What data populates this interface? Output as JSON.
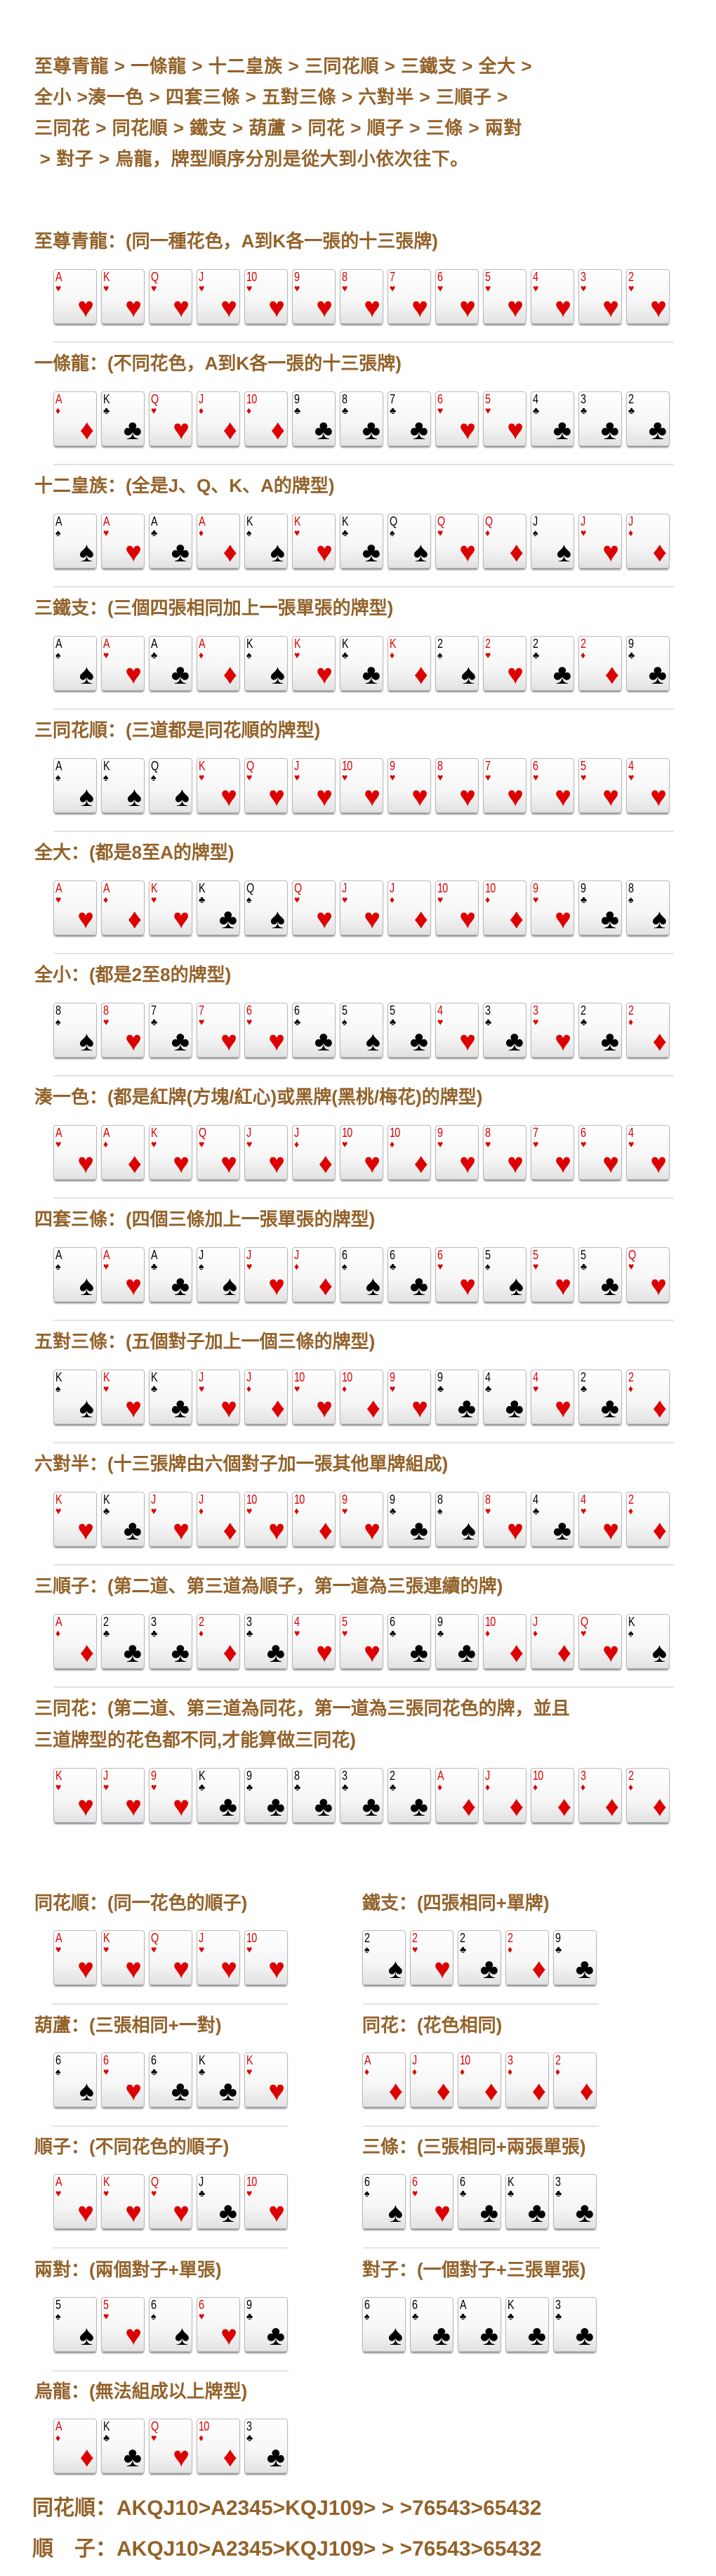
{
  "intro": [
    "至尊青龍 > 一條龍 > 十二皇族 > 三同花順 > 三鐵支 > 全大 >",
    "全小 >湊一色 > 四套三條 > 五對三條 > 六對半 > 三順子 >",
    "三同花 > 同花順 > 鐵支 > 葫蘆 > 同花 > 順子 > 三條 > 兩對",
    " > 對子 > 烏龍，牌型順序分別是從大到小依次往下。"
  ],
  "colors": {
    "title": "#93622a",
    "red_suit": "#dd0000",
    "black_suit": "#000000"
  },
  "suits": {
    "s": "spade",
    "h": "heart",
    "d": "diamond",
    "c": "club"
  },
  "sections": [
    {
      "title": [
        "至尊青龍：(同一種花色，A到K各一張的十三張牌)"
      ],
      "cards": [
        "Ah",
        "Kh",
        "Qh",
        "Jh",
        "10h",
        "9h",
        "8h",
        "7h",
        "6h",
        "5h",
        "4h",
        "3h",
        "2h"
      ]
    },
    {
      "title": [
        "一條龍：(不同花色，A到K各一張的十三張牌)"
      ],
      "cards": [
        "Ad",
        "Kc",
        "Qh",
        "Jd",
        "10d",
        "9c",
        "8c",
        "7c",
        "6h",
        "5h",
        "4c",
        "3c",
        "2c"
      ]
    },
    {
      "title": [
        "十二皇族：(全是J、Q、K、A的牌型)"
      ],
      "cards": [
        "As",
        "Ah",
        "Ac",
        "Ad",
        "Ks",
        "Kh",
        "Kc",
        "Qs",
        "Qh",
        "Qd",
        "Js",
        "Jh",
        "Jd"
      ]
    },
    {
      "title": [
        "三鐵支：(三個四張相同加上一張單張的牌型)"
      ],
      "cards": [
        "As",
        "Ah",
        "Ac",
        "Ad",
        "Ks",
        "Kh",
        "Kc",
        "Kd",
        "2s",
        "2h",
        "2c",
        "2d",
        "9c"
      ]
    },
    {
      "title": [
        "三同花順：(三道都是同花順的牌型)"
      ],
      "cards": [
        "As",
        "Ks",
        "Qs",
        "Kh",
        "Qh",
        "Jh",
        "10h",
        "9h",
        "8h",
        "7h",
        "6h",
        "5h",
        "4h"
      ]
    },
    {
      "title": [
        "全大：(都是8至A的牌型)"
      ],
      "cards": [
        "Ah",
        "Ad",
        "Kh",
        "Kc",
        "Qs",
        "Qh",
        "Jh",
        "Jd",
        "10h",
        "10d",
        "9h",
        "9c",
        "8s"
      ]
    },
    {
      "title": [
        "全小：(都是2至8的牌型)"
      ],
      "cards": [
        "8s",
        "8h",
        "7c",
        "7h",
        "6h",
        "6c",
        "5s",
        "5c",
        "4h",
        "3c",
        "3h",
        "2c",
        "2d"
      ]
    },
    {
      "title": [
        "湊一色：(都是紅牌(方塊/紅心)或黑牌(黑桃/梅花)的牌型)"
      ],
      "cards": [
        "Ah",
        "Ad",
        "Kh",
        "Qh",
        "Jh",
        "Jd",
        "10h",
        "10d",
        "9h",
        "8h",
        "7h",
        "6h",
        "4h"
      ]
    },
    {
      "title": [
        "四套三條：(四個三條加上一張單張的牌型)"
      ],
      "cards": [
        "As",
        "Ah",
        "Ac",
        "Js",
        "Jh",
        "Jd",
        "6s",
        "6c",
        "6h",
        "5s",
        "5h",
        "5c",
        "Qh"
      ]
    },
    {
      "title": [
        "五對三條：(五個對子加上一個三條的牌型)"
      ],
      "cards": [
        "Ks",
        "Kh",
        "Kc",
        "Jh",
        "Jd",
        "10h",
        "10d",
        "9h",
        "9c",
        "4c",
        "4h",
        "2c",
        "2d"
      ]
    },
    {
      "title": [
        "六對半：(十三張牌由六個對子加一張其他單牌組成)"
      ],
      "cards": [
        "Kh",
        "Kc",
        "Jh",
        "Jd",
        "10h",
        "10d",
        "9h",
        "9c",
        "8s",
        "8h",
        "4c",
        "4h",
        "2d"
      ]
    },
    {
      "title": [
        "三順子：(第二道、第三道為順子，第一道為三張連續的牌)"
      ],
      "cards": [
        "Ad",
        "2c",
        "3c",
        "2d",
        "3c",
        "4h",
        "5h",
        "6c",
        "9c",
        "10d",
        "Jd",
        "Qh",
        "Ks"
      ]
    },
    {
      "title": [
        "三同花：(第二道、第三道為同花，第一道為三張同花色的牌，並且",
        "三道牌型的花色都不同,才能算做三同花)"
      ],
      "cards": [
        "Kh",
        "Jh",
        "9h",
        "Kc",
        "9c",
        "8c",
        "3c",
        "2c",
        "Ad",
        "Jd",
        "10d",
        "3d",
        "2d"
      ]
    }
  ],
  "hands": [
    {
      "title": "同花順：(同一花色的順子)",
      "cards": [
        "Ah",
        "Kh",
        "Qh",
        "Jh",
        "10h"
      ]
    },
    {
      "title": "鐵支：(四張相同+單牌)",
      "cards": [
        "2s",
        "2h",
        "2c",
        "2d",
        "9c"
      ]
    },
    {
      "title": "葫蘆：(三張相同+一對)",
      "cards": [
        "6s",
        "6h",
        "6c",
        "Kc",
        "Kh"
      ]
    },
    {
      "title": "同花：(花色相同)",
      "cards": [
        "Ad",
        "Jd",
        "10d",
        "3d",
        "2d"
      ]
    },
    {
      "title": "順子：(不同花色的順子)",
      "cards": [
        "Ah",
        "Kh",
        "Qh",
        "Jc",
        "10h"
      ]
    },
    {
      "title": "三條：(三張相同+兩張單張)",
      "cards": [
        "6s",
        "6h",
        "6c",
        "Kc",
        "3c"
      ]
    },
    {
      "title": "兩對：(兩個對子+單張)",
      "cards": [
        "5s",
        "5h",
        "6s",
        "6h",
        "9c"
      ]
    },
    {
      "title": "對子：(一個對子+三張單張)",
      "cards": [
        "6s",
        "6c",
        "Ac",
        "Kc",
        "3c"
      ]
    },
    {
      "title": "烏龍：(無法組成以上牌型)",
      "cards": [
        "Ad",
        "Kc",
        "Qh",
        "10d",
        "3c"
      ]
    }
  ],
  "footer": [
    "同花順：AKQJ10>A2345>KQJ109> > >76543>65432",
    "順　子：AKQJ10>A2345>KQJ109> > >76543>65432"
  ]
}
